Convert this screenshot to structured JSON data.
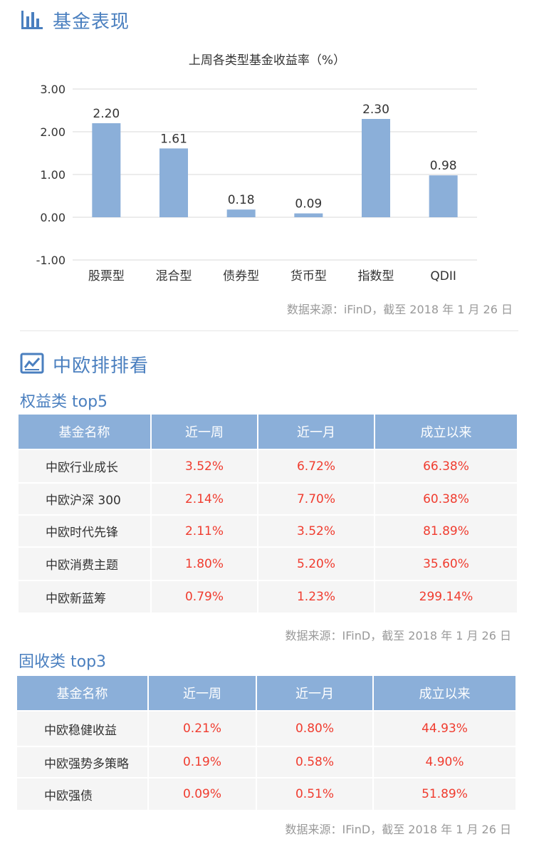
{
  "section1": {
    "title": "基金表现",
    "icon": "bar-chart-icon"
  },
  "chart_data": {
    "type": "bar",
    "title": "上周各类型基金收益率（%）",
    "categories": [
      "股票型",
      "混合型",
      "债券型",
      "货币型",
      "指数型",
      "QDII"
    ],
    "values": [
      2.2,
      1.61,
      0.18,
      0.09,
      2.3,
      0.98
    ],
    "value_labels": [
      "2.20",
      "1.61",
      "0.18",
      "0.09",
      "2.30",
      "0.98"
    ],
    "yticks": [
      "3.00",
      "2.00",
      "1.00",
      "0.00",
      "-1.00"
    ],
    "ylim": [
      -1,
      3
    ],
    "xlabel": "",
    "ylabel": "",
    "grid": true,
    "bar_color": "#8bafd9"
  },
  "chart_source": "数据来源：iFinD，截至 2018 年 1 月 26 日",
  "section2": {
    "title": "中欧排排看",
    "icon": "line-chart-icon"
  },
  "equity": {
    "title": "权益类 top5",
    "headers": [
      "基金名称",
      "近一周",
      "近一月",
      "成立以来"
    ],
    "rows": [
      [
        "中欧行业成长",
        "3.52%",
        "6.72%",
        "66.38%"
      ],
      [
        "中欧沪深 300",
        "2.14%",
        "7.70%",
        "60.38%"
      ],
      [
        "中欧时代先锋",
        "2.11%",
        "3.52%",
        "81.89%"
      ],
      [
        "中欧消费主题",
        "1.80%",
        "5.20%",
        "35.60%"
      ],
      [
        "中欧新蓝筹",
        "0.79%",
        "1.23%",
        "299.14%"
      ]
    ],
    "source": "数据来源：IFinD，截至 2018 年 1 月 26 日"
  },
  "fixed": {
    "title": "固收类 top3",
    "headers": [
      "基金名称",
      "近一周",
      "近一月",
      "成立以来"
    ],
    "rows": [
      [
        "中欧稳健收益",
        "0.21%",
        "0.80%",
        "44.93%"
      ],
      [
        "中欧强势多策略",
        "0.19%",
        "0.58%",
        "4.90%"
      ],
      [
        "中欧强债",
        "0.09%",
        "0.51%",
        "51.89%"
      ]
    ],
    "source": "数据来源：IFinD，截至 2018 年 1 月 26 日"
  },
  "colors": {
    "accent": "#4a7fbf",
    "header_bg": "#8bafd9",
    "value_red": "#f03c2f",
    "row_bg": "#f5f5f5"
  }
}
